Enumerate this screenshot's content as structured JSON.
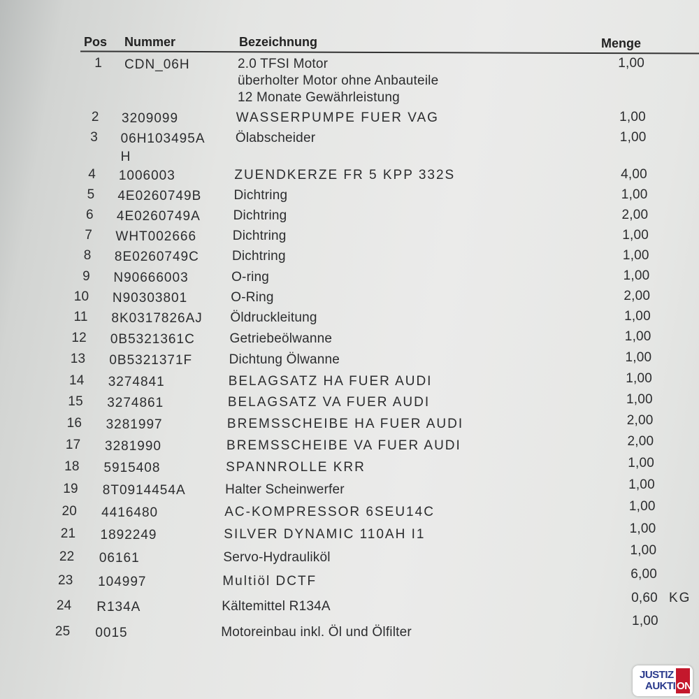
{
  "headers": {
    "pos": "Pos",
    "nummer": "Nummer",
    "bezeichnung": "Bezeichnung",
    "menge": "Menge"
  },
  "rows": [
    {
      "pos": "1",
      "nummer": "CDN_06H",
      "bezeichnung": [
        "2.0 TFSI Motor",
        "überholter Motor ohne Anbauteile",
        "12 Monate Gewährleistung"
      ],
      "menge": "1,00"
    },
    {
      "pos": "2",
      "nummer": "3209099",
      "bezeichnung": [
        "WASSERPUMPE FUER VAG"
      ],
      "menge": "1,00"
    },
    {
      "pos": "3",
      "nummer": "06H103495A\nH",
      "bezeichnung": [
        "Ölabscheider"
      ],
      "menge": "1,00"
    },
    {
      "pos": "4",
      "nummer": "1006003",
      "bezeichnung": [
        "ZUENDKERZE FR 5 KPP 332S"
      ],
      "menge": "4,00"
    },
    {
      "pos": "5",
      "nummer": "4E0260749B",
      "bezeichnung": [
        "Dichtring"
      ],
      "menge": "1,00"
    },
    {
      "pos": "6",
      "nummer": "4E0260749A",
      "bezeichnung": [
        "Dichtring"
      ],
      "menge": "2,00"
    },
    {
      "pos": "7",
      "nummer": "WHT002666",
      "bezeichnung": [
        "Dichtring"
      ],
      "menge": "1,00"
    },
    {
      "pos": "8",
      "nummer": "8E0260749C",
      "bezeichnung": [
        "Dichtring"
      ],
      "menge": "1,00"
    },
    {
      "pos": "9",
      "nummer": "N90666003",
      "bezeichnung": [
        "O-ring"
      ],
      "menge": "1,00"
    },
    {
      "pos": "10",
      "nummer": "N90303801",
      "bezeichnung": [
        "O-Ring"
      ],
      "menge": "2,00"
    },
    {
      "pos": "11",
      "nummer": "8K0317826AJ",
      "bezeichnung": [
        "Öldruckleitung"
      ],
      "menge": "1,00"
    },
    {
      "pos": "12",
      "nummer": "0B5321361C",
      "bezeichnung": [
        "Getriebeölwanne"
      ],
      "menge": "1,00"
    },
    {
      "pos": "13",
      "nummer": "0B5321371F",
      "bezeichnung": [
        "Dichtung Ölwanne"
      ],
      "menge": "1,00"
    },
    {
      "pos": "14",
      "nummer": "3274841",
      "bezeichnung": [
        "BELAGSATZ HA FUER AUDI"
      ],
      "menge": "1,00"
    },
    {
      "pos": "15",
      "nummer": "3274861",
      "bezeichnung": [
        "BELAGSATZ VA FUER AUDI"
      ],
      "menge": "1,00"
    },
    {
      "pos": "16",
      "nummer": "3281997",
      "bezeichnung": [
        "BREMSSCHEIBE HA FUER AUDI"
      ],
      "menge": "2,00"
    },
    {
      "pos": "17",
      "nummer": "3281990",
      "bezeichnung": [
        "BREMSSCHEIBE VA FUER AUDI"
      ],
      "menge": "2,00"
    },
    {
      "pos": "18",
      "nummer": "5915408",
      "bezeichnung": [
        "SPANNROLLE KRR"
      ],
      "menge": "1,00"
    },
    {
      "pos": "19",
      "nummer": "8T0914454A",
      "bezeichnung": [
        "Halter Scheinwerfer"
      ],
      "menge": "1,00"
    },
    {
      "pos": "20",
      "nummer": "4416480",
      "bezeichnung": [
        "AC-KOMPRESSOR 6SEU14C"
      ],
      "menge": "1,00"
    },
    {
      "pos": "21",
      "nummer": "1892249",
      "bezeichnung": [
        "SILVER DYNAMIC 110AH I1"
      ],
      "menge": "1,00"
    },
    {
      "pos": "22",
      "nummer": "06161",
      "bezeichnung": [
        "Servo-Hydrauliköl"
      ],
      "menge": "1,00"
    },
    {
      "pos": "23",
      "nummer": "104997",
      "bezeichnung": [
        "Multiöl DCTF"
      ],
      "menge": "6,00"
    },
    {
      "pos": "24",
      "nummer": "R134A",
      "bezeichnung": [
        "Kältemittel R134A"
      ],
      "menge": "0,60",
      "unit": "KG"
    },
    {
      "pos": "25",
      "nummer": "0015",
      "bezeichnung": [
        "Motoreinbau inkl. Öl und Ölfilter"
      ],
      "menge": "1,00"
    }
  ],
  "watermark": {
    "line1": "JUSTIZ",
    "line2": "AUKTI",
    "line2_red": "ON",
    "brand_color": "#c4182c",
    "text_color": "#2a3a8c"
  }
}
